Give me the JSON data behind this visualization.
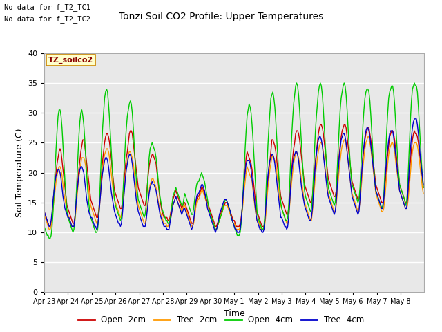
{
  "title": "Tonzi Soil CO2 Profile: Upper Temperatures",
  "ylabel": "Soil Temperature (C)",
  "xlabel": "Time",
  "annotations": [
    "No data for f_T2_TC1",
    "No data for f_T2_TC2"
  ],
  "box_label": "TZ_soilco2",
  "ylim": [
    0,
    40
  ],
  "yticks": [
    0,
    5,
    10,
    15,
    20,
    25,
    30,
    35,
    40
  ],
  "bg_color": "#e8e8e8",
  "fig_bg_color": "#ffffff",
  "line_colors": {
    "open_2cm": "#cc0000",
    "tree_2cm": "#ff9900",
    "open_4cm": "#00cc00",
    "tree_4cm": "#0000cc"
  },
  "legend_labels": [
    "Open -2cm",
    "Tree -2cm",
    "Open -4cm",
    "Tree -4cm"
  ],
  "x_tick_labels": [
    "Apr 23",
    "Apr 24",
    "Apr 25",
    "Apr 26",
    "Apr 27",
    "Apr 28",
    "Apr 29",
    "Apr 30",
    "May 1",
    "May 2",
    "May 3",
    "May 4",
    "May 5",
    "May 6",
    "May 7",
    "May 8"
  ],
  "n_days": 16,
  "points_per_day": 24,
  "open_2cm": [
    13.5,
    13.0,
    12.5,
    12.0,
    11.5,
    11.0,
    11.0,
    11.5,
    13.0,
    15.0,
    17.0,
    18.5,
    20.0,
    21.5,
    22.5,
    23.5,
    24.0,
    23.5,
    22.0,
    20.5,
    19.0,
    17.5,
    16.0,
    14.5,
    14.0,
    13.5,
    13.0,
    12.5,
    12.0,
    11.5,
    11.5,
    12.5,
    14.5,
    16.5,
    18.5,
    20.5,
    22.0,
    23.5,
    24.5,
    25.5,
    25.5,
    24.5,
    23.0,
    21.5,
    20.0,
    18.5,
    17.0,
    15.5,
    15.0,
    14.5,
    14.0,
    13.5,
    13.0,
    12.5,
    12.5,
    13.5,
    15.5,
    17.5,
    20.0,
    22.0,
    23.5,
    25.0,
    26.0,
    26.5,
    26.5,
    26.0,
    25.0,
    23.5,
    22.0,
    20.0,
    18.5,
    17.0,
    16.5,
    16.0,
    15.5,
    15.0,
    14.5,
    14.0,
    14.0,
    15.0,
    17.0,
    19.0,
    21.0,
    22.5,
    23.5,
    25.0,
    26.5,
    27.0,
    27.0,
    26.5,
    25.0,
    23.5,
    22.0,
    20.5,
    19.0,
    17.5,
    17.0,
    16.5,
    16.0,
    15.5,
    15.0,
    14.5,
    14.5,
    15.5,
    17.5,
    19.5,
    21.0,
    22.0,
    22.5,
    23.0,
    23.0,
    22.5,
    22.0,
    21.5,
    20.0,
    18.5,
    17.0,
    15.5,
    14.5,
    13.5,
    13.0,
    12.5,
    12.5,
    12.5,
    12.5,
    12.0,
    12.0,
    12.5,
    13.5,
    14.5,
    15.5,
    16.0,
    16.5,
    17.0,
    16.5,
    16.0,
    15.5,
    15.0,
    14.5,
    14.0,
    14.5,
    15.0,
    15.0,
    14.5,
    14.0,
    13.5,
    13.0,
    12.5,
    12.0,
    11.5,
    11.5,
    12.0,
    13.0,
    14.5,
    15.5,
    16.0,
    16.0,
    16.5,
    17.0,
    17.5,
    17.5,
    17.0,
    16.5,
    16.0,
    15.5,
    15.0,
    14.5,
    14.0,
    13.5,
    13.0,
    12.5,
    12.0,
    11.5,
    11.0,
    11.0,
    11.5,
    12.0,
    12.5,
    13.0,
    13.5,
    14.0,
    14.5,
    14.5,
    15.0,
    15.0,
    15.0,
    14.5,
    14.0,
    13.5,
    13.0,
    12.5,
    12.0,
    12.0,
    11.5,
    11.0,
    11.0,
    11.0,
    11.0,
    11.5,
    12.5,
    14.0,
    16.0,
    18.5,
    20.5,
    22.5,
    23.5,
    23.0,
    22.5,
    22.0,
    21.5,
    20.5,
    19.0,
    17.5,
    16.0,
    14.5,
    13.0,
    13.0,
    12.5,
    12.0,
    11.5,
    11.0,
    11.0,
    11.0,
    12.0,
    14.0,
    16.5,
    18.5,
    20.5,
    22.0,
    23.5,
    25.5,
    25.5,
    25.0,
    24.5,
    23.5,
    22.0,
    20.5,
    19.0,
    17.5,
    16.0,
    15.5,
    15.0,
    14.5,
    14.0,
    13.5,
    13.0,
    13.0,
    14.0,
    16.0,
    18.0,
    20.5,
    22.5,
    24.0,
    25.0,
    26.5,
    27.0,
    27.0,
    26.5,
    25.5,
    24.0,
    22.5,
    21.0,
    19.5,
    18.0,
    17.5,
    17.0,
    16.5,
    16.0,
    15.5,
    15.0,
    15.0,
    16.0,
    18.0,
    20.0,
    22.0,
    23.5,
    25.0,
    26.5,
    27.5,
    28.0,
    28.0,
    27.5,
    26.5,
    25.0,
    23.5,
    22.0,
    20.5,
    19.0,
    18.5,
    18.0,
    17.5,
    17.0,
    16.5,
    16.0,
    16.0,
    17.0,
    19.0,
    21.0,
    23.0,
    24.5,
    26.0,
    27.0,
    27.5,
    28.0,
    28.0,
    27.5,
    26.0,
    24.5,
    23.0,
    21.5,
    20.0,
    18.5,
    18.0,
    17.5,
    17.0,
    16.5,
    16.0,
    15.5,
    15.5,
    16.5,
    18.5,
    20.5,
    22.5,
    24.0,
    25.5,
    26.5,
    27.0,
    27.5,
    27.5,
    26.5,
    25.5,
    24.0,
    22.5,
    21.0,
    19.5,
    18.0,
    17.5,
    17.0,
    16.5,
    16.0,
    15.5,
    15.0,
    15.0,
    15.5,
    17.0,
    19.0,
    21.5,
    23.0,
    24.5,
    26.0,
    26.5,
    27.0,
    27.0,
    26.5,
    25.5,
    24.0,
    22.5,
    21.0,
    19.5,
    18.0,
    17.5,
    17.0,
    16.5,
    16.0,
    15.5,
    15.0,
    15.0,
    15.5,
    17.5,
    19.5,
    22.0,
    24.0,
    25.5,
    26.5,
    27.0,
    26.5,
    26.5,
    26.0,
    25.0,
    23.5,
    22.0,
    20.5,
    19.0,
    17.5
  ],
  "tree_2cm": [
    13.0,
    12.5,
    12.0,
    11.5,
    11.0,
    10.5,
    10.5,
    11.0,
    12.5,
    14.0,
    15.5,
    17.0,
    18.5,
    19.5,
    20.5,
    21.0,
    21.0,
    20.5,
    19.5,
    18.0,
    16.5,
    15.5,
    14.5,
    13.5,
    13.0,
    12.5,
    12.0,
    11.5,
    11.0,
    11.0,
    11.0,
    12.0,
    13.5,
    15.5,
    17.5,
    19.0,
    20.5,
    21.5,
    22.5,
    22.5,
    22.5,
    22.0,
    21.0,
    19.5,
    18.5,
    17.0,
    15.5,
    14.5,
    14.0,
    13.5,
    13.0,
    12.5,
    12.0,
    11.5,
    11.5,
    12.5,
    14.5,
    16.5,
    18.5,
    20.5,
    22.0,
    23.0,
    23.5,
    24.0,
    24.0,
    23.5,
    22.5,
    21.0,
    19.5,
    18.0,
    16.5,
    15.5,
    15.0,
    14.5,
    14.0,
    13.5,
    13.0,
    12.5,
    13.0,
    14.0,
    15.5,
    17.5,
    19.5,
    21.0,
    22.0,
    23.0,
    23.5,
    23.5,
    23.0,
    22.5,
    21.5,
    20.0,
    18.5,
    17.0,
    15.5,
    14.5,
    14.0,
    13.5,
    13.0,
    12.5,
    12.0,
    11.5,
    11.5,
    12.5,
    14.0,
    15.5,
    17.0,
    18.0,
    18.5,
    19.0,
    19.0,
    18.5,
    18.0,
    17.5,
    16.5,
    15.5,
    14.5,
    13.5,
    13.0,
    12.5,
    12.0,
    11.5,
    11.5,
    11.5,
    11.0,
    11.0,
    11.5,
    12.0,
    12.5,
    13.5,
    14.5,
    15.0,
    15.5,
    16.0,
    15.5,
    15.0,
    14.5,
    14.0,
    14.0,
    13.5,
    14.0,
    14.5,
    14.5,
    14.0,
    13.5,
    13.0,
    12.5,
    12.0,
    11.5,
    11.0,
    11.0,
    11.5,
    12.5,
    14.0,
    15.0,
    15.5,
    15.5,
    16.0,
    16.5,
    17.0,
    17.0,
    16.5,
    16.0,
    15.5,
    15.0,
    14.5,
    14.0,
    13.5,
    13.0,
    12.5,
    12.0,
    11.5,
    11.0,
    10.5,
    10.5,
    11.0,
    11.5,
    12.0,
    12.5,
    13.0,
    13.5,
    14.0,
    14.5,
    14.5,
    14.5,
    14.5,
    14.0,
    13.5,
    13.0,
    12.5,
    12.0,
    11.5,
    11.5,
    11.0,
    10.5,
    10.5,
    10.5,
    10.5,
    11.0,
    12.0,
    13.5,
    15.0,
    17.0,
    18.5,
    20.0,
    21.0,
    20.5,
    20.0,
    19.5,
    19.0,
    18.5,
    17.0,
    15.5,
    14.0,
    13.0,
    12.0,
    12.0,
    11.5,
    11.0,
    10.5,
    10.5,
    10.5,
    10.5,
    11.5,
    13.0,
    15.5,
    17.5,
    19.0,
    20.5,
    21.5,
    22.5,
    23.0,
    22.5,
    22.0,
    21.5,
    20.0,
    18.5,
    17.0,
    15.5,
    14.5,
    14.0,
    13.5,
    13.0,
    12.5,
    12.0,
    11.5,
    11.5,
    12.5,
    14.5,
    16.5,
    18.5,
    20.0,
    21.5,
    22.5,
    23.0,
    23.5,
    23.0,
    22.5,
    21.5,
    20.0,
    18.5,
    17.5,
    16.0,
    15.0,
    14.5,
    14.0,
    13.5,
    13.0,
    12.5,
    12.0,
    12.0,
    13.5,
    15.5,
    17.5,
    19.5,
    21.0,
    22.5,
    23.5,
    24.5,
    25.0,
    25.0,
    24.5,
    23.5,
    22.0,
    20.5,
    19.0,
    17.5,
    16.5,
    16.0,
    15.5,
    15.0,
    14.5,
    14.0,
    13.5,
    13.5,
    14.5,
    16.5,
    18.5,
    20.5,
    22.0,
    23.5,
    24.5,
    25.0,
    25.5,
    25.5,
    24.5,
    23.5,
    22.0,
    20.5,
    19.0,
    17.5,
    16.5,
    16.0,
    15.5,
    15.0,
    14.5,
    14.0,
    13.5,
    14.0,
    15.0,
    17.0,
    19.0,
    21.0,
    22.5,
    24.0,
    25.0,
    25.5,
    26.0,
    26.0,
    25.0,
    24.0,
    22.5,
    21.0,
    19.5,
    18.0,
    16.5,
    16.0,
    15.5,
    15.0,
    14.5,
    14.0,
    13.5,
    13.5,
    14.0,
    15.5,
    17.5,
    19.5,
    21.5,
    23.0,
    24.0,
    24.5,
    25.0,
    25.0,
    24.5,
    23.5,
    22.0,
    20.5,
    19.5,
    18.0,
    17.0,
    16.5,
    16.0,
    15.5,
    15.0,
    14.5,
    14.0,
    14.0,
    14.5,
    16.0,
    18.0,
    20.0,
    22.0,
    23.5,
    24.5,
    25.0,
    25.0,
    25.0,
    24.5,
    23.5,
    22.0,
    20.5,
    19.0,
    17.5,
    16.5
  ],
  "open_4cm": [
    11.0,
    10.5,
    10.0,
    9.5,
    9.5,
    9.0,
    9.0,
    9.5,
    11.0,
    13.5,
    17.0,
    20.5,
    24.0,
    27.0,
    29.5,
    30.5,
    30.5,
    29.5,
    27.5,
    24.5,
    21.5,
    18.5,
    16.0,
    13.5,
    12.5,
    12.0,
    11.5,
    11.0,
    10.5,
    10.0,
    10.5,
    12.0,
    15.0,
    18.5,
    22.5,
    26.0,
    28.5,
    30.0,
    30.5,
    29.5,
    28.0,
    25.5,
    22.5,
    19.5,
    17.0,
    15.0,
    13.5,
    12.5,
    12.0,
    11.5,
    11.0,
    10.5,
    10.0,
    10.0,
    10.5,
    12.5,
    16.0,
    20.0,
    24.0,
    27.5,
    30.0,
    32.5,
    33.5,
    34.0,
    33.5,
    31.5,
    29.0,
    26.0,
    23.0,
    20.0,
    17.5,
    15.5,
    14.5,
    14.0,
    13.5,
    13.0,
    12.5,
    12.0,
    12.5,
    14.5,
    18.0,
    21.5,
    25.0,
    27.5,
    29.5,
    30.5,
    31.5,
    32.0,
    31.5,
    30.0,
    27.5,
    24.5,
    21.5,
    19.0,
    17.0,
    15.5,
    15.0,
    14.5,
    14.0,
    13.5,
    13.0,
    12.5,
    13.0,
    14.5,
    17.0,
    20.0,
    22.5,
    24.0,
    24.5,
    25.0,
    24.5,
    24.0,
    23.5,
    22.5,
    21.0,
    19.0,
    17.5,
    16.0,
    15.0,
    14.0,
    13.5,
    13.0,
    12.5,
    12.0,
    12.0,
    11.5,
    11.5,
    12.0,
    13.0,
    14.5,
    16.0,
    16.5,
    17.0,
    17.5,
    17.0,
    16.5,
    16.0,
    15.5,
    15.0,
    14.5,
    14.5,
    15.5,
    16.5,
    16.0,
    15.5,
    15.0,
    14.5,
    14.0,
    13.5,
    13.0,
    13.0,
    14.0,
    15.5,
    17.0,
    18.0,
    18.5,
    18.5,
    19.0,
    19.5,
    20.0,
    19.5,
    19.0,
    18.5,
    17.5,
    16.5,
    15.5,
    14.5,
    13.5,
    13.0,
    12.5,
    12.0,
    11.5,
    11.0,
    10.5,
    10.5,
    11.0,
    11.5,
    12.0,
    12.5,
    13.0,
    13.5,
    14.5,
    15.0,
    15.5,
    15.5,
    15.0,
    14.5,
    14.0,
    13.5,
    12.5,
    12.0,
    11.5,
    11.0,
    10.5,
    10.0,
    9.5,
    9.5,
    9.5,
    10.0,
    11.5,
    14.0,
    17.0,
    20.5,
    24.0,
    27.0,
    29.5,
    30.5,
    31.5,
    31.0,
    30.0,
    28.0,
    25.5,
    22.5,
    19.5,
    16.5,
    13.5,
    12.5,
    12.0,
    11.5,
    11.0,
    10.5,
    10.5,
    11.0,
    13.0,
    16.5,
    20.5,
    24.5,
    27.5,
    30.0,
    32.5,
    33.0,
    33.5,
    32.5,
    31.0,
    28.5,
    25.5,
    22.5,
    19.5,
    17.0,
    15.0,
    14.0,
    13.5,
    13.0,
    12.5,
    12.0,
    12.0,
    12.5,
    14.5,
    18.0,
    22.0,
    26.0,
    29.0,
    31.5,
    33.0,
    34.5,
    35.0,
    34.5,
    33.0,
    30.5,
    27.5,
    24.5,
    21.5,
    19.0,
    17.0,
    16.0,
    15.5,
    15.0,
    14.5,
    14.0,
    13.5,
    14.0,
    16.0,
    19.5,
    23.5,
    27.0,
    29.5,
    31.5,
    33.5,
    34.5,
    35.0,
    34.5,
    33.0,
    30.5,
    27.5,
    24.5,
    22.0,
    19.5,
    17.5,
    17.0,
    16.5,
    16.0,
    15.5,
    15.0,
    14.5,
    15.0,
    17.0,
    20.5,
    24.0,
    27.5,
    30.5,
    32.5,
    33.5,
    34.5,
    35.0,
    34.5,
    33.0,
    30.5,
    27.5,
    24.5,
    22.0,
    19.5,
    18.0,
    17.5,
    17.0,
    16.5,
    16.0,
    15.5,
    15.0,
    15.5,
    17.5,
    21.0,
    24.5,
    28.0,
    30.5,
    32.5,
    33.5,
    34.0,
    34.0,
    33.5,
    32.0,
    29.5,
    26.5,
    23.5,
    21.0,
    18.5,
    17.0,
    16.5,
    16.0,
    15.5,
    15.0,
    14.5,
    14.0,
    14.5,
    16.0,
    19.5,
    23.0,
    27.0,
    30.0,
    32.5,
    33.5,
    34.0,
    34.5,
    34.5,
    33.5,
    31.5,
    28.5,
    25.5,
    22.5,
    20.0,
    18.0,
    17.5,
    17.0,
    16.5,
    16.0,
    15.5,
    14.5,
    15.0,
    17.0,
    21.0,
    25.0,
    29.0,
    32.0,
    34.0,
    34.5,
    35.0,
    34.5,
    34.5,
    33.5,
    31.0,
    28.0,
    25.0,
    22.0,
    19.5,
    17.5
  ],
  "tree_4cm": [
    13.5,
    13.0,
    12.5,
    12.0,
    11.5,
    11.0,
    11.0,
    12.0,
    13.5,
    15.5,
    17.0,
    18.5,
    19.5,
    20.0,
    20.5,
    20.5,
    20.0,
    19.0,
    17.5,
    16.0,
    15.0,
    14.0,
    13.5,
    13.0,
    12.5,
    12.5,
    12.0,
    11.5,
    11.0,
    11.0,
    11.0,
    12.5,
    14.5,
    16.5,
    18.0,
    19.5,
    20.5,
    21.0,
    21.0,
    20.5,
    20.0,
    18.5,
    17.0,
    15.5,
    14.5,
    13.5,
    13.0,
    12.5,
    12.5,
    12.0,
    11.5,
    11.0,
    11.0,
    10.5,
    11.0,
    12.5,
    14.5,
    16.5,
    18.5,
    20.0,
    21.0,
    22.0,
    22.5,
    22.5,
    22.0,
    21.0,
    19.5,
    18.0,
    16.5,
    15.5,
    14.5,
    13.5,
    13.0,
    12.5,
    12.0,
    11.5,
    11.5,
    11.0,
    11.5,
    13.0,
    15.0,
    17.0,
    19.0,
    20.5,
    21.5,
    22.5,
    23.0,
    23.0,
    22.5,
    21.5,
    20.0,
    18.5,
    17.0,
    15.5,
    14.5,
    13.5,
    13.0,
    12.5,
    12.0,
    11.5,
    11.0,
    11.0,
    11.0,
    12.0,
    13.5,
    15.0,
    16.5,
    17.5,
    18.0,
    18.5,
    18.0,
    18.0,
    17.5,
    17.0,
    16.0,
    15.0,
    14.0,
    13.0,
    12.5,
    12.0,
    11.5,
    11.0,
    11.0,
    11.0,
    10.5,
    10.5,
    10.5,
    11.5,
    12.5,
    13.5,
    14.5,
    15.0,
    15.5,
    16.0,
    15.5,
    15.0,
    14.5,
    14.0,
    13.5,
    13.0,
    13.5,
    14.0,
    14.0,
    13.5,
    13.0,
    12.5,
    12.0,
    11.5,
    11.0,
    10.5,
    11.0,
    12.0,
    13.5,
    15.0,
    16.0,
    16.5,
    16.5,
    17.0,
    17.5,
    18.0,
    18.0,
    17.5,
    17.0,
    16.0,
    15.0,
    14.0,
    13.5,
    13.0,
    12.5,
    12.0,
    11.5,
    11.0,
    10.5,
    10.0,
    10.5,
    11.0,
    12.0,
    13.0,
    13.5,
    14.0,
    14.5,
    15.0,
    15.5,
    15.5,
    15.5,
    15.0,
    14.5,
    14.0,
    13.5,
    12.5,
    12.0,
    11.5,
    11.0,
    10.5,
    10.5,
    10.0,
    10.0,
    10.0,
    10.5,
    12.0,
    14.0,
    16.5,
    18.5,
    20.0,
    21.5,
    22.0,
    22.0,
    22.0,
    21.5,
    20.5,
    19.0,
    17.5,
    16.0,
    14.5,
    13.0,
    12.0,
    11.5,
    11.0,
    10.5,
    10.5,
    10.0,
    10.0,
    10.5,
    12.0,
    14.5,
    17.0,
    19.5,
    21.0,
    22.0,
    22.5,
    23.0,
    23.0,
    22.5,
    21.5,
    20.0,
    18.5,
    17.0,
    15.5,
    14.0,
    12.5,
    12.5,
    12.0,
    11.5,
    11.0,
    11.0,
    10.5,
    11.0,
    12.5,
    15.0,
    17.5,
    20.0,
    21.5,
    22.5,
    23.0,
    23.5,
    23.5,
    23.0,
    22.0,
    20.5,
    19.0,
    17.5,
    16.5,
    15.5,
    14.5,
    14.0,
    13.5,
    13.0,
    12.5,
    12.0,
    12.0,
    12.5,
    14.0,
    16.5,
    19.0,
    21.5,
    23.0,
    24.5,
    25.5,
    26.0,
    26.0,
    25.5,
    24.5,
    23.0,
    21.5,
    20.0,
    18.5,
    17.0,
    16.0,
    15.5,
    15.0,
    14.5,
    14.0,
    13.5,
    13.0,
    13.5,
    15.0,
    17.5,
    20.0,
    22.5,
    24.0,
    25.5,
    26.0,
    26.5,
    26.5,
    26.0,
    25.0,
    23.5,
    22.0,
    20.5,
    19.0,
    17.5,
    16.0,
    15.5,
    15.0,
    14.5,
    14.0,
    13.5,
    13.0,
    13.5,
    15.5,
    18.0,
    20.5,
    23.0,
    24.5,
    26.0,
    27.0,
    27.5,
    27.5,
    27.0,
    26.0,
    24.5,
    23.0,
    21.5,
    20.0,
    18.5,
    17.0,
    16.5,
    16.0,
    15.5,
    15.0,
    14.5,
    14.0,
    14.0,
    15.5,
    18.0,
    20.5,
    22.5,
    24.0,
    25.5,
    26.5,
    27.0,
    27.0,
    27.0,
    26.0,
    24.5,
    23.0,
    21.5,
    20.0,
    18.5,
    17.0,
    16.5,
    16.0,
    15.5,
    15.0,
    14.5,
    14.0,
    14.0,
    15.5,
    18.5,
    21.5,
    24.0,
    26.0,
    27.5,
    28.5,
    29.0,
    29.0,
    29.0,
    28.0,
    26.5,
    24.5,
    22.5,
    21.0,
    19.5,
    18.0
  ]
}
